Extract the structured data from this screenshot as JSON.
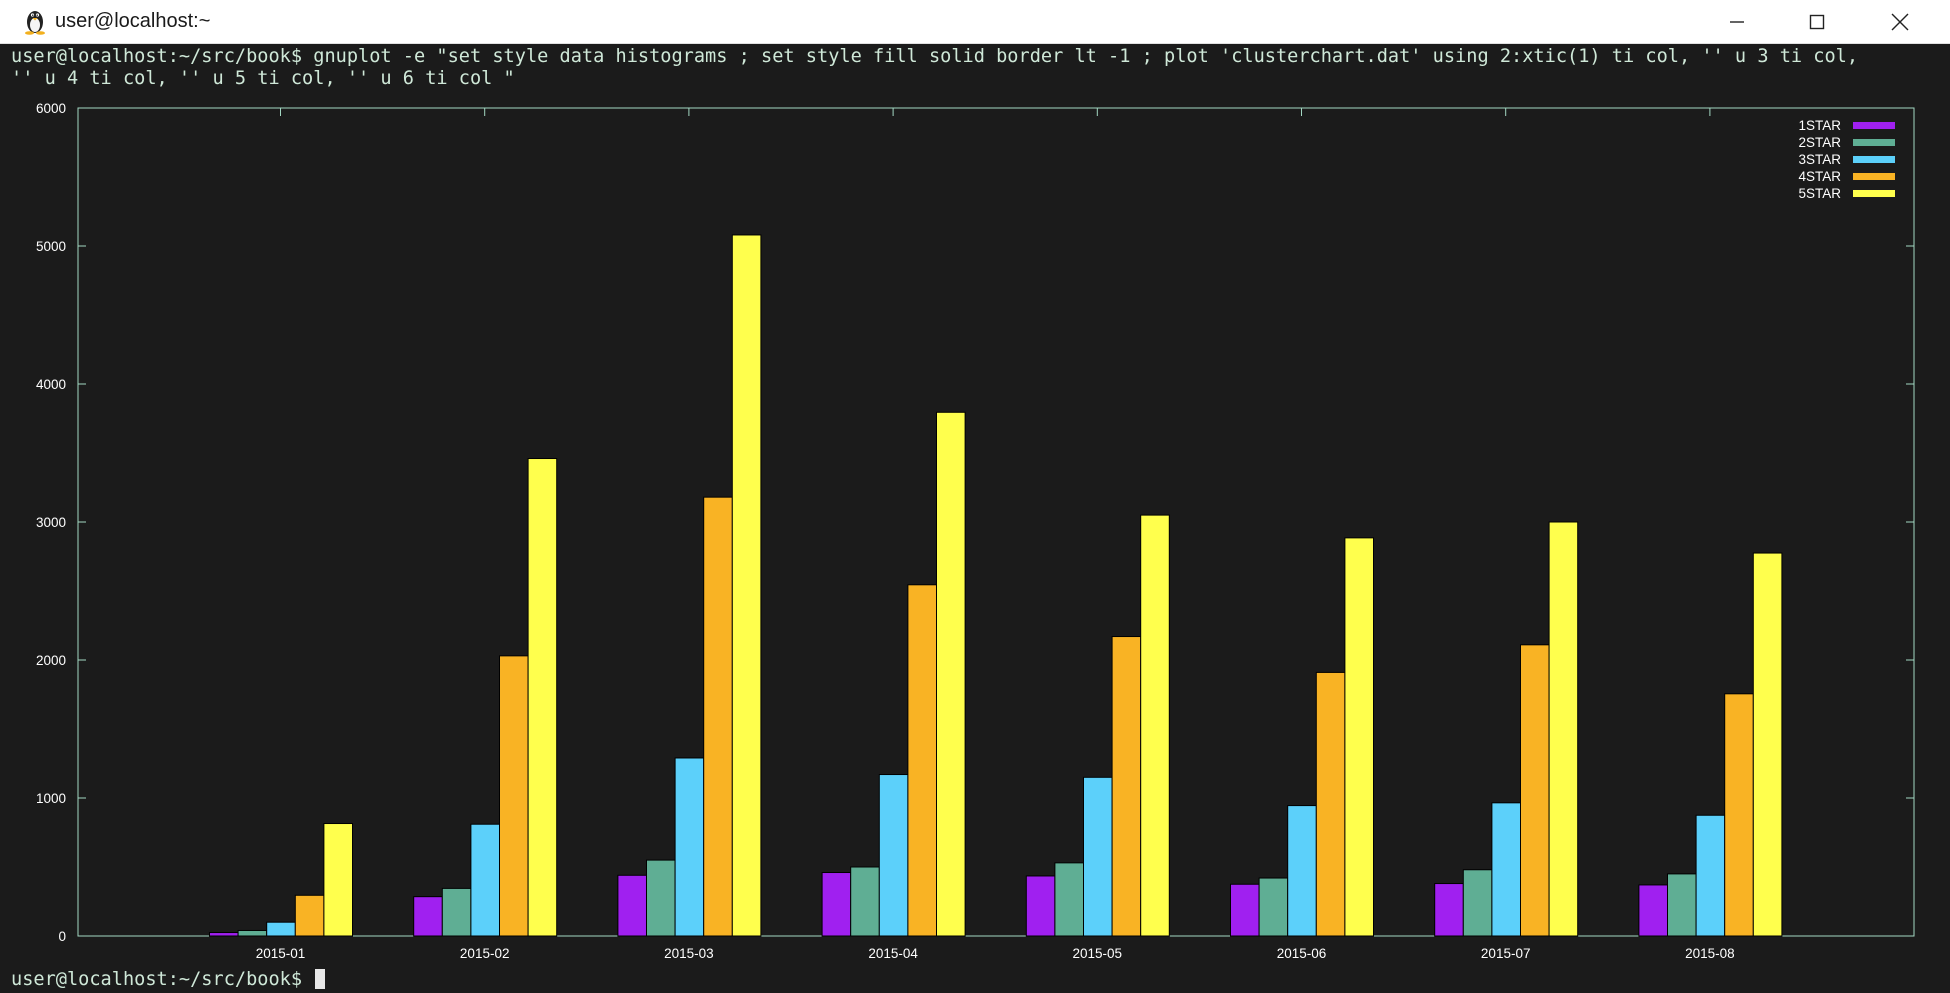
{
  "window": {
    "title": "user@localhost:~"
  },
  "terminal": {
    "command_line1": "user@localhost:~/src/book$ gnuplot -e \"set style data histograms ; set style fill solid border lt -1 ; plot 'clusterchart.dat' using 2:xtic(1) ti col, '' u 3 ti col,",
    "command_line2": "'' u 4 ti col, '' u 5 ti col, '' u 6 ti col \"",
    "prompt": "user@localhost:~/src/book$ "
  },
  "icons": {
    "app": "tux-penguin-icon",
    "minimize": "minimize-icon",
    "maximize": "maximize-icon",
    "close": "close-icon"
  },
  "colors": {
    "terminal_background": "#1b1b1b",
    "axis": "#a3d8c3",
    "series": [
      "#a020f0",
      "#5fae94",
      "#5cd0fa",
      "#f9b324",
      "#ffff4d"
    ]
  },
  "chart_data": {
    "type": "bar",
    "categories": [
      "2015-01",
      "2015-02",
      "2015-03",
      "2015-04",
      "2015-05",
      "2015-06",
      "2015-07",
      "2015-08"
    ],
    "series": [
      {
        "name": "1STAR",
        "values": [
          25,
          285,
          440,
          460,
          435,
          375,
          380,
          370
        ]
      },
      {
        "name": "2STAR",
        "values": [
          40,
          345,
          550,
          500,
          530,
          420,
          480,
          450
        ]
      },
      {
        "name": "3STAR",
        "values": [
          100,
          810,
          1290,
          1170,
          1150,
          945,
          965,
          875
        ]
      },
      {
        "name": "4STAR",
        "values": [
          295,
          2030,
          3180,
          2545,
          2170,
          1910,
          2110,
          1755
        ]
      },
      {
        "name": "5STAR",
        "values": [
          815,
          3460,
          5080,
          3795,
          3050,
          2885,
          3000,
          2775
        ]
      }
    ],
    "yticks": [
      "0",
      "1000",
      "2000",
      "3000",
      "4000",
      "5000",
      "6000"
    ],
    "ylim": [
      0,
      6000
    ],
    "grid": false,
    "legend_position": "top-right"
  }
}
